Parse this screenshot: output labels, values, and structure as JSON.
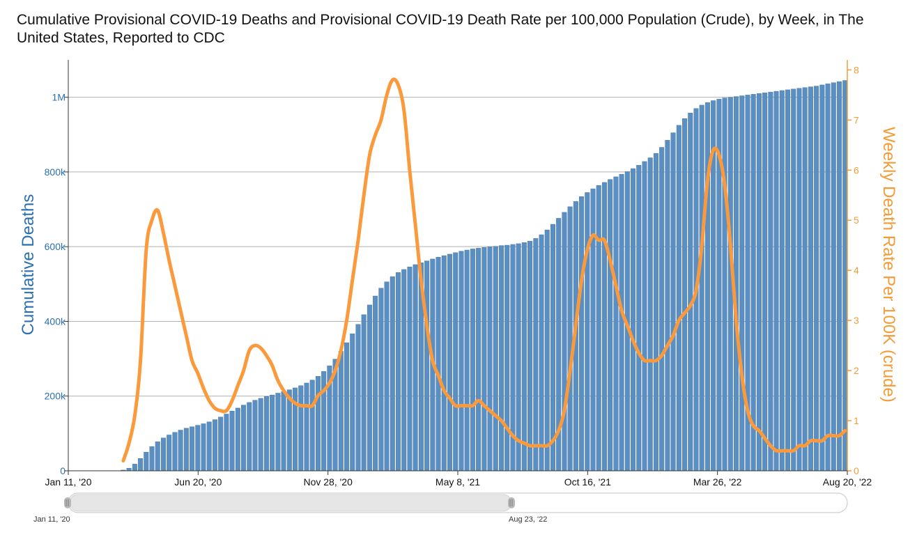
{
  "title": "Cumulative Provisional COVID-19 Deaths and Provisional COVID-19 Death Rate per 100,000 Population (Crude), by Week, in The United States, Reported to CDC",
  "colors": {
    "bars": "#5b8fc2",
    "bar_edge": "#3f71a6",
    "line": "#fb9a3c",
    "left_axis": "#2a6fb0",
    "right_axis": "#f39c36",
    "grid": "#b0b0b0"
  },
  "scrollbar": {
    "start_label": "Jan 11, '20",
    "end_label": "Aug 23, '22"
  },
  "chart_data": {
    "type": "bar",
    "title": "Cumulative Provisional COVID-19 Deaths and Provisional COVID-19 Death Rate per 100,000 Population (Crude), by Week, in The United States, Reported to CDC",
    "x_start": "2020-01-11",
    "x_end": "2022-08-20",
    "x_ticks": [
      "Jan 11, '20",
      "Jun 20, '20",
      "Nov 28, '20",
      "May 8, '21",
      "Oct 16, '21",
      "Mar 26, '22",
      "Aug 20, '22"
    ],
    "grid": true,
    "y_left": {
      "label": "Cumulative Deaths",
      "ylim": [
        0,
        1100000
      ],
      "ticks": [
        "0",
        "200k",
        "400k",
        "600k",
        "800k",
        "1M"
      ]
    },
    "y_right": {
      "label": "Weekly Death Rate Per 100K (crude)",
      "ylim": [
        0,
        8.2
      ],
      "ticks": [
        "0",
        "1",
        "2",
        "3",
        "4",
        "5",
        "6",
        "7",
        "8"
      ]
    },
    "series": [
      {
        "name": "Cumulative Deaths",
        "type": "bar",
        "axis": "left",
        "points": [
          [
            "2020-03-21",
            2000
          ],
          [
            "2020-03-28",
            7000
          ],
          [
            "2020-04-04",
            18000
          ],
          [
            "2020-04-11",
            33000
          ],
          [
            "2020-04-18",
            50000
          ],
          [
            "2020-04-25",
            65000
          ],
          [
            "2020-05-02",
            78000
          ],
          [
            "2020-05-09",
            88000
          ],
          [
            "2020-05-16",
            96000
          ],
          [
            "2020-05-23",
            103000
          ],
          [
            "2020-05-30",
            109000
          ],
          [
            "2020-06-06",
            114000
          ],
          [
            "2020-06-13",
            118000
          ],
          [
            "2020-06-20",
            122000
          ],
          [
            "2020-06-27",
            126000
          ],
          [
            "2020-07-04",
            131000
          ],
          [
            "2020-07-11",
            137000
          ],
          [
            "2020-07-18",
            144000
          ],
          [
            "2020-07-25",
            152000
          ],
          [
            "2020-08-01",
            160000
          ],
          [
            "2020-08-08",
            168000
          ],
          [
            "2020-08-15",
            176000
          ],
          [
            "2020-08-22",
            183000
          ],
          [
            "2020-08-29",
            189000
          ],
          [
            "2020-09-05",
            194000
          ],
          [
            "2020-09-12",
            199000
          ],
          [
            "2020-09-19",
            203000
          ],
          [
            "2020-09-26",
            208000
          ],
          [
            "2020-10-03",
            212000
          ],
          [
            "2020-10-10",
            217000
          ],
          [
            "2020-10-17",
            222000
          ],
          [
            "2020-10-24",
            228000
          ],
          [
            "2020-10-31",
            235000
          ],
          [
            "2020-11-07",
            243000
          ],
          [
            "2020-11-14",
            253000
          ],
          [
            "2020-11-21",
            266000
          ],
          [
            "2020-11-28",
            281000
          ],
          [
            "2020-12-05",
            299000
          ],
          [
            "2020-12-12",
            320000
          ],
          [
            "2020-12-19",
            343000
          ],
          [
            "2020-12-26",
            367000
          ],
          [
            "2021-01-02",
            392000
          ],
          [
            "2021-01-09",
            418000
          ],
          [
            "2021-01-16",
            444000
          ],
          [
            "2021-01-23",
            468000
          ],
          [
            "2021-01-30",
            489000
          ],
          [
            "2021-02-06",
            506000
          ],
          [
            "2021-02-13",
            520000
          ],
          [
            "2021-02-20",
            531000
          ],
          [
            "2021-02-27",
            539000
          ],
          [
            "2021-03-06",
            546000
          ],
          [
            "2021-03-13",
            552000
          ],
          [
            "2021-03-20",
            557000
          ],
          [
            "2021-03-27",
            562000
          ],
          [
            "2021-04-03",
            567000
          ],
          [
            "2021-04-10",
            572000
          ],
          [
            "2021-04-17",
            576000
          ],
          [
            "2021-04-24",
            580000
          ],
          [
            "2021-05-01",
            584000
          ],
          [
            "2021-05-08",
            588000
          ],
          [
            "2021-05-15",
            591000
          ],
          [
            "2021-05-22",
            594000
          ],
          [
            "2021-05-29",
            596000
          ],
          [
            "2021-06-05",
            598000
          ],
          [
            "2021-06-12",
            600000
          ],
          [
            "2021-06-19",
            601000
          ],
          [
            "2021-06-26",
            603000
          ],
          [
            "2021-07-03",
            604000
          ],
          [
            "2021-07-10",
            606000
          ],
          [
            "2021-07-17",
            608000
          ],
          [
            "2021-07-24",
            611000
          ],
          [
            "2021-07-31",
            615000
          ],
          [
            "2021-08-07",
            622000
          ],
          [
            "2021-08-14",
            632000
          ],
          [
            "2021-08-21",
            645000
          ],
          [
            "2021-08-28",
            660000
          ],
          [
            "2021-09-04",
            676000
          ],
          [
            "2021-09-11",
            692000
          ],
          [
            "2021-09-18",
            707000
          ],
          [
            "2021-09-25",
            721000
          ],
          [
            "2021-10-02",
            734000
          ],
          [
            "2021-10-09",
            745000
          ],
          [
            "2021-10-16",
            755000
          ],
          [
            "2021-10-23",
            764000
          ],
          [
            "2021-10-30",
            772000
          ],
          [
            "2021-11-06",
            780000
          ],
          [
            "2021-11-13",
            787000
          ],
          [
            "2021-11-20",
            794000
          ],
          [
            "2021-11-27",
            801000
          ],
          [
            "2021-12-04",
            809000
          ],
          [
            "2021-12-11",
            818000
          ],
          [
            "2021-12-18",
            828000
          ],
          [
            "2021-12-25",
            838000
          ],
          [
            "2022-01-01",
            850000
          ],
          [
            "2022-01-08",
            866000
          ],
          [
            "2022-01-15",
            885000
          ],
          [
            "2022-01-22",
            905000
          ],
          [
            "2022-01-29",
            925000
          ],
          [
            "2022-02-05",
            943000
          ],
          [
            "2022-02-12",
            958000
          ],
          [
            "2022-02-19",
            970000
          ],
          [
            "2022-02-26",
            979000
          ],
          [
            "2022-03-05",
            986000
          ],
          [
            "2022-03-12",
            991000
          ],
          [
            "2022-03-19",
            995000
          ],
          [
            "2022-03-26",
            998000
          ],
          [
            "2022-04-02",
            1000000
          ],
          [
            "2022-04-09",
            1002000
          ],
          [
            "2022-04-16",
            1004000
          ],
          [
            "2022-04-23",
            1006000
          ],
          [
            "2022-04-30",
            1008000
          ],
          [
            "2022-05-07",
            1010000
          ],
          [
            "2022-05-14",
            1012000
          ],
          [
            "2022-05-21",
            1014000
          ],
          [
            "2022-05-28",
            1016000
          ],
          [
            "2022-06-04",
            1018000
          ],
          [
            "2022-06-11",
            1020000
          ],
          [
            "2022-06-18",
            1022000
          ],
          [
            "2022-06-25",
            1024000
          ],
          [
            "2022-07-02",
            1026000
          ],
          [
            "2022-07-09",
            1028000
          ],
          [
            "2022-07-16",
            1030000
          ],
          [
            "2022-07-23",
            1033000
          ],
          [
            "2022-07-30",
            1036000
          ],
          [
            "2022-08-06",
            1039000
          ],
          [
            "2022-08-13",
            1042000
          ],
          [
            "2022-08-20",
            1045000
          ]
        ]
      },
      {
        "name": "Weekly Death Rate Per 100K (crude)",
        "type": "line",
        "axis": "right",
        "points": [
          [
            "2020-03-21",
            0.2
          ],
          [
            "2020-03-28",
            0.55
          ],
          [
            "2020-04-04",
            1.1
          ],
          [
            "2020-04-11",
            2.2
          ],
          [
            "2020-04-18",
            4.4
          ],
          [
            "2020-04-25",
            5.0
          ],
          [
            "2020-05-02",
            5.2
          ],
          [
            "2020-05-09",
            4.75
          ],
          [
            "2020-05-16",
            4.2
          ],
          [
            "2020-05-23",
            3.7
          ],
          [
            "2020-05-30",
            3.2
          ],
          [
            "2020-06-06",
            2.7
          ],
          [
            "2020-06-13",
            2.2
          ],
          [
            "2020-06-20",
            1.95
          ],
          [
            "2020-06-27",
            1.65
          ],
          [
            "2020-07-04",
            1.4
          ],
          [
            "2020-07-11",
            1.25
          ],
          [
            "2020-07-18",
            1.2
          ],
          [
            "2020-07-25",
            1.2
          ],
          [
            "2020-08-01",
            1.4
          ],
          [
            "2020-08-08",
            1.7
          ],
          [
            "2020-08-15",
            2.0
          ],
          [
            "2020-08-22",
            2.4
          ],
          [
            "2020-08-29",
            2.5
          ],
          [
            "2020-09-05",
            2.45
          ],
          [
            "2020-09-12",
            2.3
          ],
          [
            "2020-09-19",
            2.1
          ],
          [
            "2020-09-26",
            1.8
          ],
          [
            "2020-10-03",
            1.6
          ],
          [
            "2020-10-10",
            1.45
          ],
          [
            "2020-10-17",
            1.35
          ],
          [
            "2020-10-24",
            1.3
          ],
          [
            "2020-10-31",
            1.3
          ],
          [
            "2020-11-07",
            1.3
          ],
          [
            "2020-11-14",
            1.5
          ],
          [
            "2020-11-21",
            1.6
          ],
          [
            "2020-11-28",
            1.75
          ],
          [
            "2020-12-05",
            2.0
          ],
          [
            "2020-12-12",
            2.4
          ],
          [
            "2020-12-19",
            3.0
          ],
          [
            "2020-12-26",
            3.8
          ],
          [
            "2021-01-02",
            4.6
          ],
          [
            "2021-01-09",
            5.5
          ],
          [
            "2021-01-16",
            6.3
          ],
          [
            "2021-01-23",
            6.7
          ],
          [
            "2021-01-30",
            7.0
          ],
          [
            "2021-02-06",
            7.5
          ],
          [
            "2021-02-13",
            7.8
          ],
          [
            "2021-02-20",
            7.7
          ],
          [
            "2021-02-27",
            7.2
          ],
          [
            "2021-03-06",
            6.0
          ],
          [
            "2021-03-13",
            4.9
          ],
          [
            "2021-03-20",
            3.8
          ],
          [
            "2021-03-27",
            2.9
          ],
          [
            "2021-04-03",
            2.2
          ],
          [
            "2021-04-10",
            1.9
          ],
          [
            "2021-04-17",
            1.6
          ],
          [
            "2021-04-24",
            1.45
          ],
          [
            "2021-05-01",
            1.3
          ],
          [
            "2021-05-08",
            1.3
          ],
          [
            "2021-05-15",
            1.3
          ],
          [
            "2021-05-22",
            1.3
          ],
          [
            "2021-05-29",
            1.4
          ],
          [
            "2021-06-05",
            1.3
          ],
          [
            "2021-06-12",
            1.2
          ],
          [
            "2021-06-19",
            1.1
          ],
          [
            "2021-06-26",
            1.0
          ],
          [
            "2021-07-03",
            0.85
          ],
          [
            "2021-07-10",
            0.7
          ],
          [
            "2021-07-17",
            0.6
          ],
          [
            "2021-07-24",
            0.55
          ],
          [
            "2021-07-31",
            0.5
          ],
          [
            "2021-08-07",
            0.5
          ],
          [
            "2021-08-14",
            0.5
          ],
          [
            "2021-08-21",
            0.5
          ],
          [
            "2021-08-28",
            0.6
          ],
          [
            "2021-09-04",
            0.8
          ],
          [
            "2021-09-11",
            1.2
          ],
          [
            "2021-09-18",
            2.0
          ],
          [
            "2021-09-25",
            2.9
          ],
          [
            "2021-10-02",
            3.8
          ],
          [
            "2021-10-09",
            4.4
          ],
          [
            "2021-10-16",
            4.7
          ],
          [
            "2021-10-23",
            4.6
          ],
          [
            "2021-10-30",
            4.6
          ],
          [
            "2021-11-06",
            4.2
          ],
          [
            "2021-11-13",
            3.7
          ],
          [
            "2021-11-20",
            3.2
          ],
          [
            "2021-11-27",
            2.9
          ],
          [
            "2021-12-04",
            2.6
          ],
          [
            "2021-12-11",
            2.35
          ],
          [
            "2021-12-18",
            2.2
          ],
          [
            "2021-12-25",
            2.2
          ],
          [
            "2022-01-01",
            2.2
          ],
          [
            "2022-01-08",
            2.3
          ],
          [
            "2022-01-15",
            2.5
          ],
          [
            "2022-01-22",
            2.7
          ],
          [
            "2022-01-29",
            3.0
          ],
          [
            "2022-02-05",
            3.15
          ],
          [
            "2022-02-12",
            3.3
          ],
          [
            "2022-02-19",
            3.6
          ],
          [
            "2022-02-26",
            4.5
          ],
          [
            "2022-03-05",
            5.8
          ],
          [
            "2022-03-12",
            6.4
          ],
          [
            "2022-03-19",
            6.3
          ],
          [
            "2022-03-26",
            5.7
          ],
          [
            "2022-04-02",
            4.5
          ],
          [
            "2022-04-09",
            3.0
          ],
          [
            "2022-04-16",
            1.9
          ],
          [
            "2022-04-23",
            1.2
          ],
          [
            "2022-04-30",
            0.9
          ],
          [
            "2022-05-07",
            0.8
          ],
          [
            "2022-05-14",
            0.65
          ],
          [
            "2022-05-21",
            0.5
          ],
          [
            "2022-05-28",
            0.4
          ],
          [
            "2022-06-04",
            0.4
          ],
          [
            "2022-06-11",
            0.4
          ],
          [
            "2022-06-18",
            0.4
          ],
          [
            "2022-06-25",
            0.5
          ],
          [
            "2022-07-02",
            0.5
          ],
          [
            "2022-07-09",
            0.6
          ],
          [
            "2022-07-16",
            0.6
          ],
          [
            "2022-07-23",
            0.6
          ],
          [
            "2022-07-30",
            0.7
          ],
          [
            "2022-08-06",
            0.7
          ],
          [
            "2022-08-13",
            0.7
          ],
          [
            "2022-08-20",
            0.8
          ]
        ]
      }
    ]
  }
}
